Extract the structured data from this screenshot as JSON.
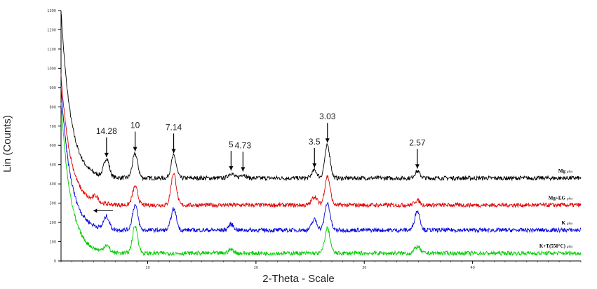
{
  "chart_data": {
    "type": "line",
    "xlabel": "2-Theta - Scale",
    "ylabel": "Lin (Counts)",
    "xlim": [
      2,
      50
    ],
    "ylim": [
      0,
      1300
    ],
    "x_ticks": [
      10,
      20,
      30,
      40
    ],
    "y_ticks": [
      0,
      100,
      200,
      300,
      400,
      500,
      600,
      700,
      800,
      900,
      1000,
      1100,
      1200,
      1300
    ],
    "peaks": [
      {
        "label": "14.28",
        "two_theta": 6.2
      },
      {
        "label": "10",
        "two_theta": 8.84
      },
      {
        "label": "7.14",
        "two_theta": 12.4
      },
      {
        "label": "5",
        "two_theta": 17.7
      },
      {
        "label": "4.73",
        "two_theta": 18.8
      },
      {
        "label": "3.5",
        "two_theta": 25.4
      },
      {
        "label": "3.03",
        "two_theta": 26.6
      },
      {
        "label": "2.57",
        "two_theta": 34.9
      }
    ],
    "series": [
      {
        "name": "Mg",
        "suffix": "glos",
        "color": "#000000",
        "baseline": 430,
        "start": 1300,
        "peaks": [
          [
            6.2,
            95
          ],
          [
            8.84,
            125
          ],
          [
            12.4,
            115
          ],
          [
            17.7,
            25
          ],
          [
            18.8,
            20
          ],
          [
            25.4,
            40
          ],
          [
            26.6,
            170
          ],
          [
            34.9,
            35
          ]
        ]
      },
      {
        "name": "Mg+EG",
        "suffix": "glos",
        "color": "#e00000",
        "baseline": 290,
        "start": 960,
        "peaks": [
          [
            5.2,
            30
          ],
          [
            8.84,
            95
          ],
          [
            12.4,
            165
          ],
          [
            25.4,
            45
          ],
          [
            26.6,
            150
          ],
          [
            34.9,
            25
          ]
        ]
      },
      {
        "name": "K",
        "suffix": "glos",
        "color": "#0000e0",
        "baseline": 160,
        "start": 900,
        "peaks": [
          [
            6.2,
            65
          ],
          [
            8.84,
            130
          ],
          [
            12.4,
            110
          ],
          [
            17.7,
            30
          ],
          [
            25.4,
            55
          ],
          [
            26.6,
            140
          ],
          [
            34.9,
            100
          ]
        ]
      },
      {
        "name": "K+T(550°C)",
        "suffix": "glos",
        "color": "#00cc00",
        "baseline": 40,
        "start": 830,
        "peaks": [
          [
            6.2,
            35
          ],
          [
            8.84,
            140
          ],
          [
            17.7,
            20
          ],
          [
            26.6,
            130
          ],
          [
            34.9,
            35
          ]
        ]
      }
    ],
    "grid": false,
    "legend": "inline-right"
  }
}
